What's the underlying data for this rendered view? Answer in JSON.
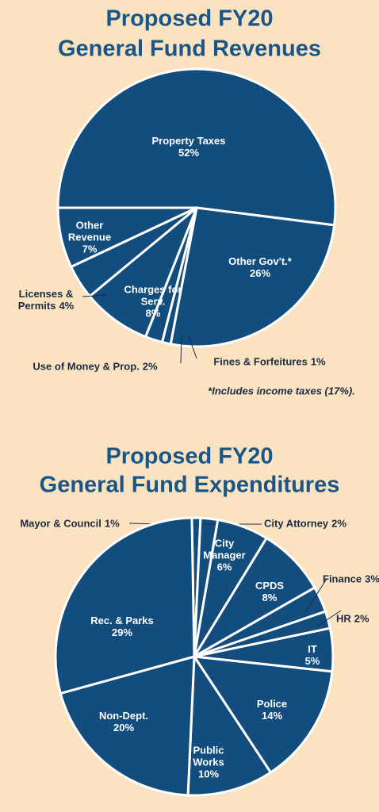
{
  "chart_data": [
    {
      "type": "pie",
      "title": [
        "Proposed FY20",
        "General Fund Revenues"
      ],
      "categories": [
        "Property Taxes",
        "Other Gov't.*",
        "Fines & Forfeitures",
        "Use of Money & Prop.",
        "Charges for Serv.",
        "Licenses & Permits",
        "Other Revenue"
      ],
      "values": [
        52,
        26,
        1,
        2,
        8,
        4,
        7
      ],
      "value_labels": [
        "52%",
        "26%",
        "1%",
        "2%",
        "8%",
        "4%",
        "7%"
      ],
      "annotation": "*Includes income taxes (17%).",
      "color": "#124d7e"
    },
    {
      "type": "pie",
      "title": [
        "Proposed FY20",
        "General Fund Expenditures"
      ],
      "categories": [
        "Mayor & Council",
        "City Attorney",
        "City Manager",
        "CPDS",
        "Finance",
        "HR",
        "IT",
        "Police",
        "Public Works",
        "Non-Dept.",
        "Rec. & Parks"
      ],
      "values": [
        1,
        2,
        6,
        8,
        3,
        2,
        5,
        14,
        10,
        20,
        29
      ],
      "value_labels": [
        "1%",
        "2%",
        "6%",
        "8%",
        "3%",
        "2%",
        "5%",
        "14%",
        "10%",
        "20%",
        "29%"
      ],
      "color": "#124d7e"
    }
  ]
}
